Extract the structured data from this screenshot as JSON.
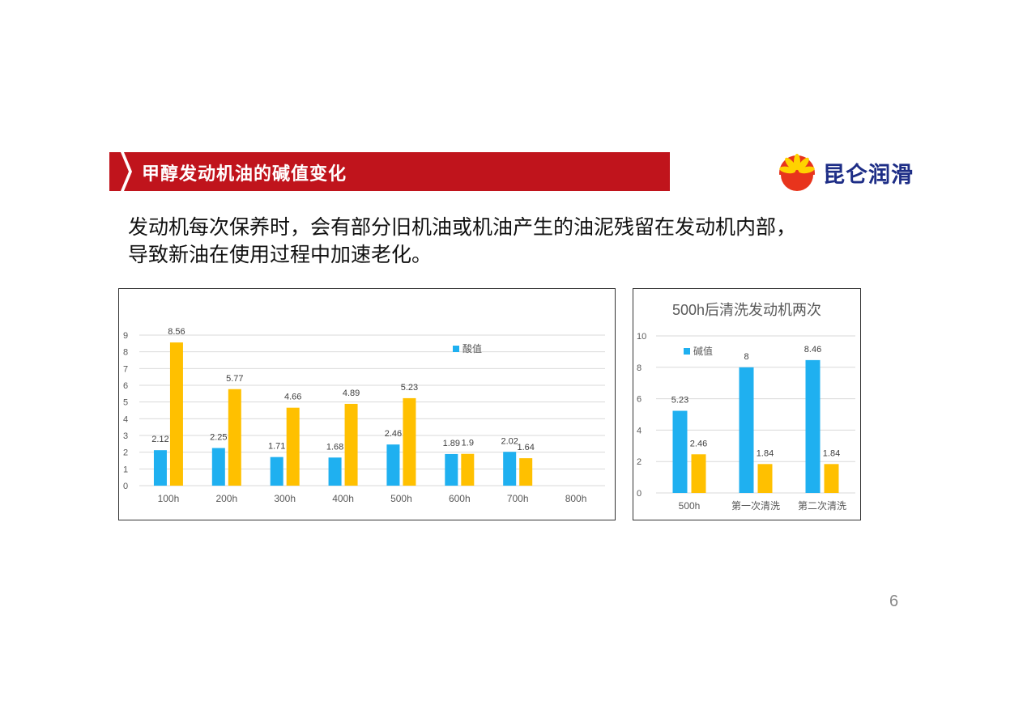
{
  "header": {
    "title": "甲醇发动机油的碱值变化",
    "logo_text": "昆仑润滑",
    "banner_color": "#c0141c",
    "logo_text_color": "#1d2d86"
  },
  "description": {
    "line1": "发动机每次保养时，会有部分旧机油或机油产生的油泥残留在发动机内部，",
    "line2": "导致新油在使用过程中加速老化。"
  },
  "page_number": "6",
  "colors": {
    "blue": "#1fb0f0",
    "yellow": "#ffc000"
  },
  "chart_data": [
    {
      "type": "bar",
      "title": "",
      "categories": [
        "100h",
        "200h",
        "300h",
        "400h",
        "500h",
        "600h",
        "700h",
        "800h"
      ],
      "series": [
        {
          "name": "酸值",
          "values": [
            2.12,
            2.25,
            1.71,
            1.68,
            2.46,
            1.89,
            2.02,
            null
          ],
          "color": "#1fb0f0"
        },
        {
          "values": [
            8.56,
            5.77,
            4.66,
            4.89,
            5.23,
            1.9,
            1.64,
            null
          ],
          "color": "#ffc000"
        }
      ],
      "data_labels": [
        [
          "2.12",
          "2.25",
          "1.71",
          "1.68",
          "2.46",
          "1.89",
          "2.02",
          ""
        ],
        [
          "8.56",
          "5.77",
          "4.66",
          "4.89",
          "5.23",
          "1.9",
          "1.64",
          ""
        ]
      ],
      "yticks": [
        "0",
        "1",
        "2",
        "3",
        "4",
        "5",
        "6",
        "7",
        "8",
        "9"
      ],
      "ylim": [
        0,
        9
      ],
      "grid": true,
      "legend": "top-right"
    },
    {
      "type": "bar",
      "title": "500h后清洗发动机两次",
      "categories": [
        "500h",
        "第一次清洗",
        "第二次清洗"
      ],
      "series": [
        {
          "name": "碱值",
          "values": [
            5.23,
            8,
            8.46
          ],
          "color": "#1fb0f0"
        },
        {
          "values": [
            2.46,
            1.84,
            1.84
          ],
          "color": "#ffc000"
        }
      ],
      "data_labels": [
        [
          "5.23",
          "8",
          "8.46"
        ],
        [
          "2.46",
          "1.84",
          "1.84"
        ]
      ],
      "yticks": [
        "0",
        "2",
        "4",
        "6",
        "8",
        "10"
      ],
      "ylim": [
        0,
        10
      ],
      "grid": true,
      "legend": "top-left"
    }
  ]
}
